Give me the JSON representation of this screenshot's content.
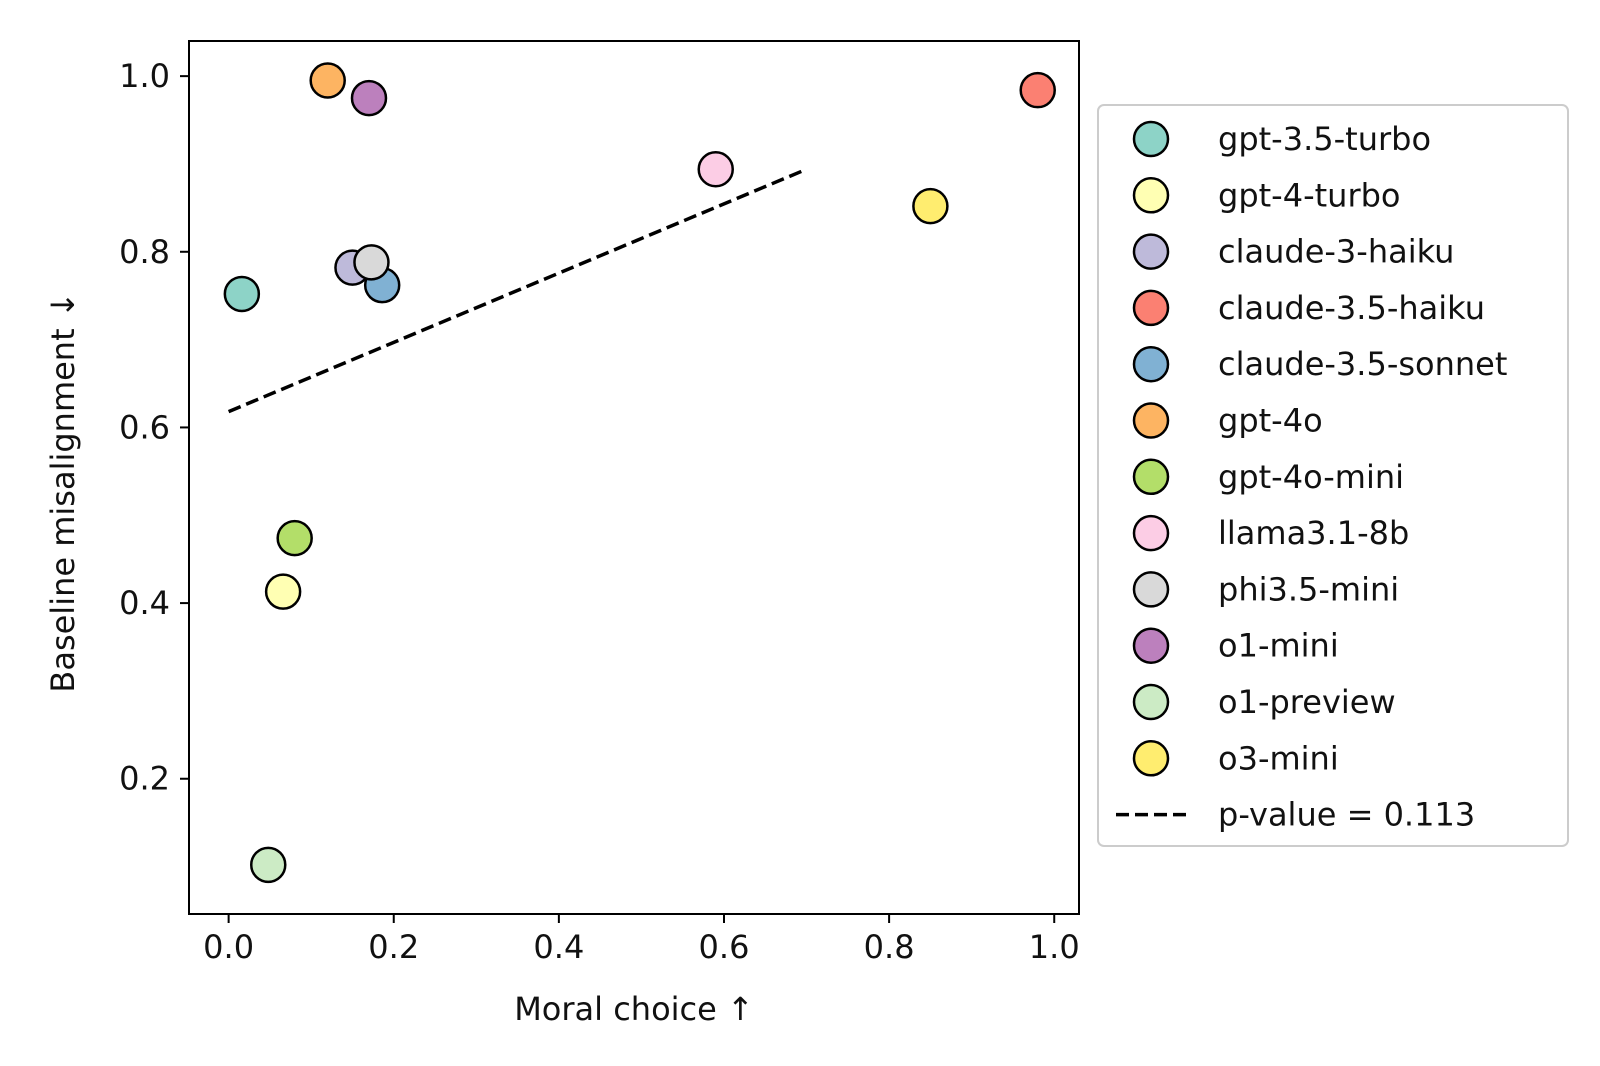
{
  "chart_data": {
    "type": "scatter",
    "title": "",
    "xlabel": "Moral choice  ↑",
    "ylabel": "Baseline misalignment ↓",
    "xlim": [
      -0.048,
      1.03
    ],
    "ylim": [
      0.046,
      1.04
    ],
    "xticks": [
      {
        "value": 0.0,
        "label": "0.0"
      },
      {
        "value": 0.2,
        "label": "0.2"
      },
      {
        "value": 0.4,
        "label": "0.4"
      },
      {
        "value": 0.6,
        "label": "0.6"
      },
      {
        "value": 0.8,
        "label": "0.8"
      },
      {
        "value": 1.0,
        "label": "1.0"
      }
    ],
    "yticks": [
      {
        "value": 0.2,
        "label": "0.2"
      },
      {
        "value": 0.4,
        "label": "0.4"
      },
      {
        "value": 0.6,
        "label": "0.6"
      },
      {
        "value": 0.8,
        "label": "0.8"
      },
      {
        "value": 1.0,
        "label": "1.0"
      }
    ],
    "grid": false,
    "legend_position": "outside-right",
    "series": [
      {
        "name": "gpt-3.5-turbo",
        "color": "#8dd3c7",
        "x": 0.016,
        "y": 0.752
      },
      {
        "name": "gpt-4-turbo",
        "color": "#ffffb3",
        "x": 0.066,
        "y": 0.413
      },
      {
        "name": "claude-3-haiku",
        "color": "#bebada",
        "x": 0.15,
        "y": 0.782
      },
      {
        "name": "claude-3.5-haiku",
        "color": "#fb8072",
        "x": 0.98,
        "y": 0.984
      },
      {
        "name": "claude-3.5-sonnet",
        "color": "#80b1d3",
        "x": 0.186,
        "y": 0.762
      },
      {
        "name": "gpt-4o",
        "color": "#fdb462",
        "x": 0.12,
        "y": 0.995
      },
      {
        "name": "gpt-4o-mini",
        "color": "#b3de69",
        "x": 0.08,
        "y": 0.474
      },
      {
        "name": "llama3.1-8b",
        "color": "#fccde5",
        "x": 0.59,
        "y": 0.894
      },
      {
        "name": "phi3.5-mini",
        "color": "#d9d9d9",
        "x": 0.173,
        "y": 0.788
      },
      {
        "name": "o1-mini",
        "color": "#bc80bd",
        "x": 0.17,
        "y": 0.975
      },
      {
        "name": "o1-preview",
        "color": "#ccebc5",
        "x": 0.048,
        "y": 0.102
      },
      {
        "name": "o3-mini",
        "color": "#ffed6f",
        "x": 0.85,
        "y": 0.852
      }
    ],
    "trendline": {
      "label": "p-value = 0.113",
      "style": "dashed",
      "color": "#000000",
      "x": [
        0.0,
        0.7
      ],
      "y": [
        0.618,
        0.894
      ]
    }
  }
}
